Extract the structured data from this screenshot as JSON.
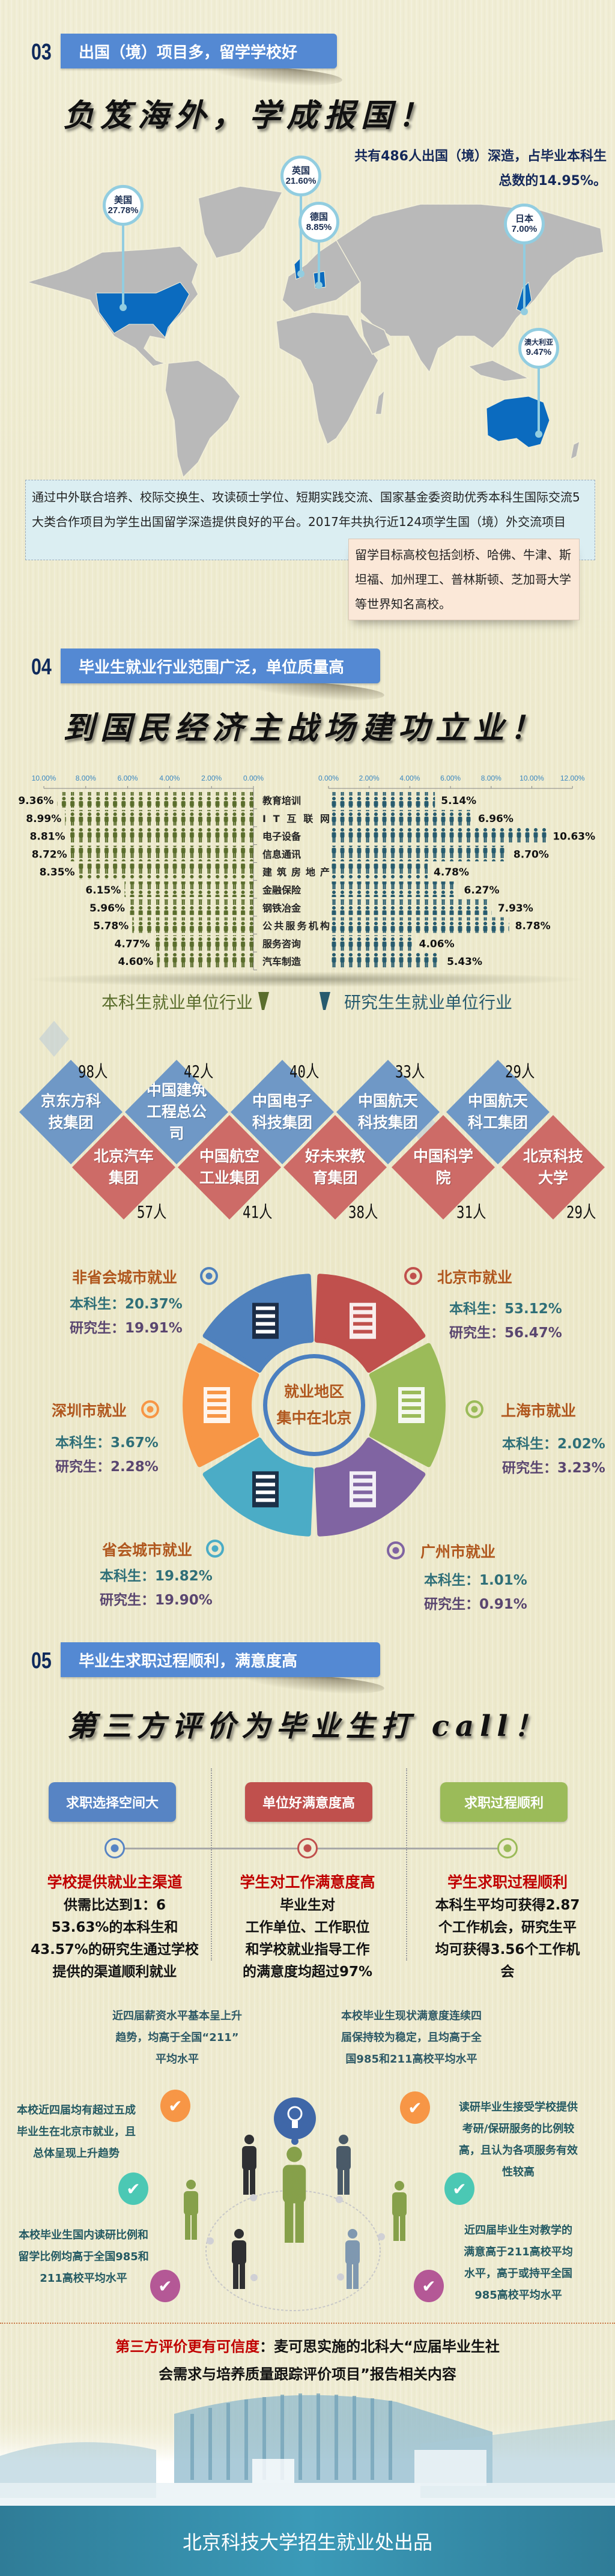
{
  "colors": {
    "bg": "#efecd2",
    "header_blue": "#5489d3",
    "map_gray": "#b9b9b9",
    "map_highlight": "#0b6bbf",
    "pin": "#92cde0",
    "diamond_blue": "#6f98c6",
    "diamond_red": "#cd6b67",
    "undergrad_icon": "#5a6d2c",
    "grad_icon": "#275b6e"
  },
  "section03": {
    "number": "03",
    "title": "出国（境）项目多，留学学校好",
    "slogan": "负笈海外，学成报国！",
    "stat_line1": "共有486人出国（境）深造，占毕业本科生",
    "stat_line2": "总数的14.95%。",
    "pins": [
      {
        "country": "美国",
        "pct": "27.78%"
      },
      {
        "country": "英国",
        "pct": "21.60%"
      },
      {
        "country": "德国",
        "pct": "8.85%"
      },
      {
        "country": "日本",
        "pct": "7.00%"
      },
      {
        "country": "澳大利亚",
        "pct": "9.47%"
      }
    ],
    "info_text": "通过中外联合培养、校际交换生、攻读硕士学位、短期实践交流、国家基金委资助优秀本科生国际交流5大类合作项目为学生出国留学深造提供良好的平台。2017年共执行近124项学生国（境）外交流项目",
    "schools_text": "留学目标高校包括剑桥、哈佛、牛津、斯坦福、加州理工、普林斯顿、芝加哥大学等世界知名高校。"
  },
  "section04": {
    "number": "04",
    "title": "毕业生就业行业范围广泛，单位质量高",
    "slogan": "到国民经济主战场建功立业！",
    "legend": {
      "undergrad": "本科生就业单位行业",
      "grad": "研究生生就业单位行业"
    },
    "companies_top": [
      {
        "name": "京东方科技集团",
        "count": "98人"
      },
      {
        "name": "中国建筑工程总公司",
        "count": "42人"
      },
      {
        "name": "中国电子科技集团",
        "count": "40人"
      },
      {
        "name": "中国航天科技集团",
        "count": "33人"
      },
      {
        "name": "中国航天科工集团",
        "count": "29人"
      }
    ],
    "companies_bottom": [
      {
        "name": "北京汽车集团",
        "count": "57人"
      },
      {
        "name": "中国航空工业集团",
        "count": "41人"
      },
      {
        "name": "好未来教育集团",
        "count": "38人"
      },
      {
        "name": "中国科学院",
        "count": "31人"
      },
      {
        "name": "北京科技大学",
        "count": "29人"
      }
    ],
    "region_center_line1": "就业地区",
    "region_center_line2": "集中在北京",
    "regions": [
      {
        "name": "非省会城市就业",
        "undergrad": "本科生：20.37%",
        "grad": "研究生：19.91%",
        "color": "#4f81bd"
      },
      {
        "name": "北京市就业",
        "undergrad": "本科生：53.12%",
        "grad": "研究生：56.47%",
        "color": "#c0504d"
      },
      {
        "name": "上海市就业",
        "undergrad": "本科生：2.02%",
        "grad": "研究生：3.23%",
        "color": "#9bbb59"
      },
      {
        "name": "广州市就业",
        "undergrad": "本科生：1.01%",
        "grad": "研究生：0.91%",
        "color": "#8064a2"
      },
      {
        "name": "省会城市就业",
        "undergrad": "本科生：19.82%",
        "grad": "研究生：19.90%",
        "color": "#4bacc6"
      },
      {
        "name": "深圳市就业",
        "undergrad": "本科生：3.67%",
        "grad": "研究生：2.28%",
        "color": "#f79646"
      }
    ]
  },
  "chart_data": [
    {
      "type": "bar",
      "orientation": "horizontal-reversed",
      "series": [
        {
          "name": "本科生就业单位行业",
          "values": [
            9.36,
            8.99,
            8.81,
            8.72,
            8.35,
            6.15,
            5.96,
            5.78,
            4.77,
            4.6
          ]
        }
      ],
      "categories": [
        "教育培训",
        "IT互联网",
        "电子设备",
        "信息通讯",
        "建筑房地产",
        "金融保险",
        "钢铁冶金",
        "公共服务机构",
        "服务咨询",
        "汽车制造"
      ],
      "value_labels": [
        "9.36%",
        "8.99%",
        "8.81%",
        "8.72%",
        "8.35%",
        "6.15%",
        "5.96%",
        "5.78%",
        "4.77%",
        "4.60%"
      ],
      "xlim": [
        0,
        10
      ],
      "ticks": [
        "10.00%",
        "8.00%",
        "6.00%",
        "4.00%",
        "2.00%",
        "0.00%"
      ],
      "mark": "person-icons"
    },
    {
      "type": "bar",
      "orientation": "horizontal",
      "series": [
        {
          "name": "研究生生就业单位行业",
          "values": [
            5.14,
            6.96,
            10.63,
            8.7,
            4.78,
            6.27,
            7.93,
            8.78,
            4.06,
            5.43
          ]
        }
      ],
      "categories": [
        "教育培训",
        "IT互联网",
        "电子设备",
        "信息通讯",
        "建筑房地产",
        "金融保险",
        "钢铁冶金",
        "公共服务机构",
        "服务咨询",
        "汽车制造"
      ],
      "value_labels": [
        "5.14%",
        "6.96%",
        "10.63%",
        "8.70%",
        "4.78%",
        "6.27%",
        "7.93%",
        "8.78%",
        "4.06%",
        "5.43%"
      ],
      "xlim": [
        0,
        12
      ],
      "ticks": [
        "0.00%",
        "2.00%",
        "4.00%",
        "6.00%",
        "8.00%",
        "10.00%",
        "12.00%"
      ],
      "mark": "person-icons"
    }
  ],
  "section05": {
    "number": "05",
    "title": "毕业生求职过程顺利，满意度高",
    "slogan": "第三方评价为毕业生打 call！",
    "columns": [
      {
        "tab": "求职选择空间大",
        "color": "#5784c4",
        "title": "学校提供就业主渠道",
        "lines": [
          "供需比达到1：6",
          "53.63%的本科生和",
          "43.57%的研究生通过学校",
          "提供的渠道顺利就业"
        ]
      },
      {
        "tab": "单位好满意度高",
        "color": "#c0504d",
        "title": "学生对工作满意度高",
        "lines": [
          "毕业生对",
          "工作单位、工作职位",
          "和学校就业指导工作",
          "的满意度均超过97%"
        ]
      },
      {
        "tab": "求职过程顺利",
        "color": "#9bbb59",
        "title": "学生求职过程顺利",
        "lines": [
          "本科生平均可获得2.87",
          "个工作机会，研究生平",
          "均可获得3.56个工作机",
          "会"
        ]
      }
    ],
    "sub_left": [
      "近四届薪资水平基本呈上升",
      "趋势，均高于全国“211”",
      "平均水平"
    ],
    "sub_right": [
      "本校毕业生现状满意度连续四",
      "届保持较为稳定，且均高于全",
      "国985和211高校平均水平"
    ],
    "points": [
      {
        "lines": [
          "本校近四届均有超过五成",
          "毕业生在北京市就业，且",
          "总体呈现上升趋势"
        ],
        "color": "#f79646"
      },
      {
        "lines": [
          "本校毕业生国内读研比例和",
          "留学比例均高于全国985和",
          "211高校平均水平"
        ],
        "color": "#b45896"
      },
      {
        "lines": [
          "读研毕业生接受学校提供",
          "考研/保研服务的比例较",
          "高，且认为各项服务有效",
          "性较高"
        ],
        "color": "#f79646"
      },
      {
        "lines": [
          "近四届毕业生对教学的",
          "满意高于211高校平均",
          "水平，高于或持平全国",
          "985高校平均水平"
        ],
        "color": "#b45896"
      }
    ],
    "check_teal": "#4bc8b4",
    "credit_red": "第三方评价更有可信度",
    "credit_black1": "：麦可思实施的北科大“应届毕业生社",
    "credit_black2": "会需求与培养质量跟踪评价项目”报告相关内容"
  },
  "footer": {
    "text": "北京科技大学招生就业处出品"
  }
}
